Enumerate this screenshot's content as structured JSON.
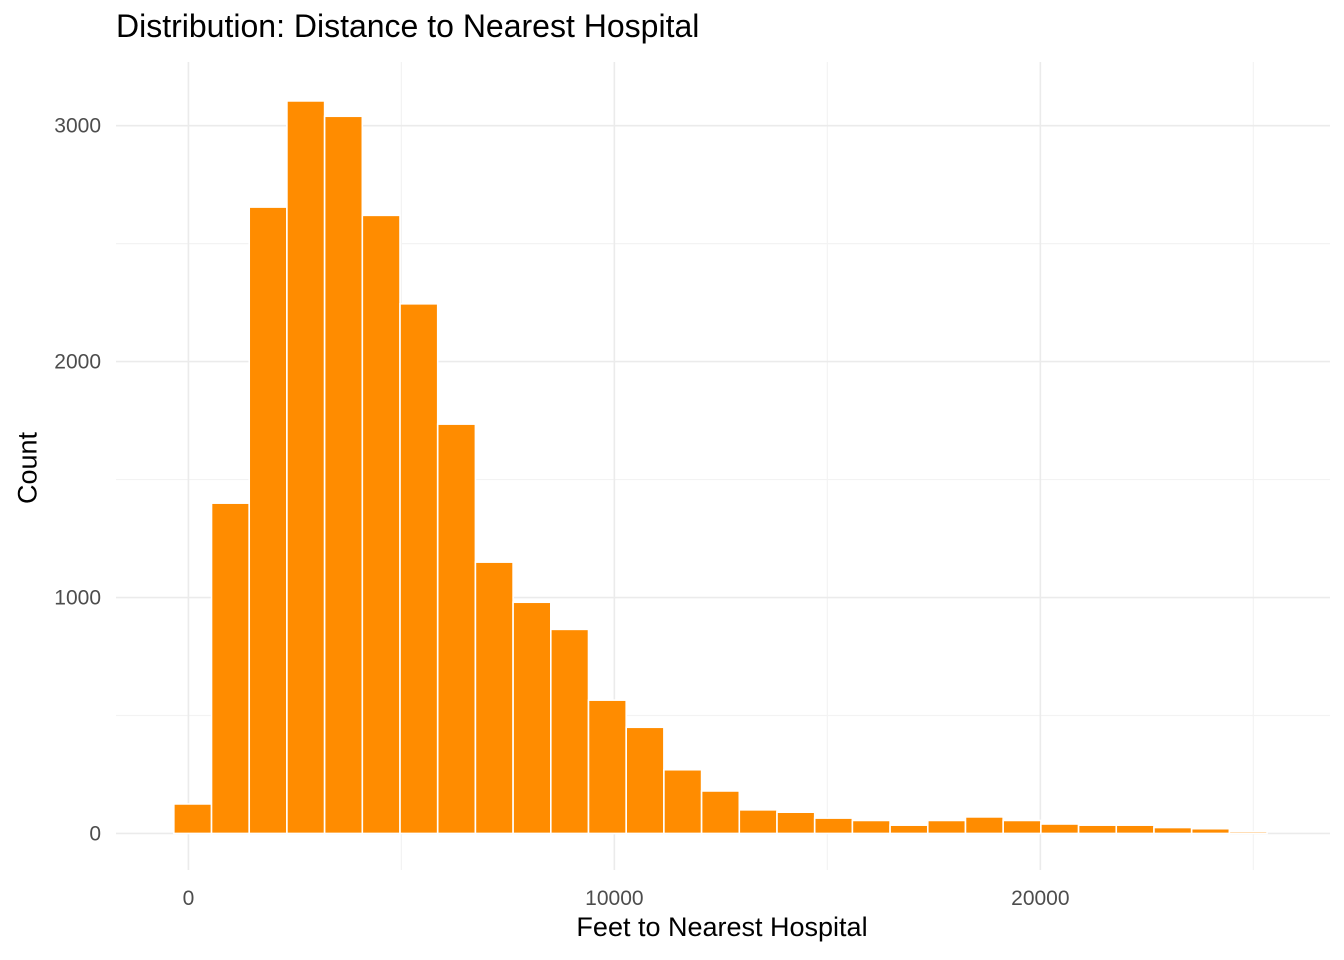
{
  "chart_data": {
    "type": "bar",
    "title": "Distribution: Distance to Nearest Hospital",
    "xlabel": "Feet to Nearest Hospital",
    "ylabel": "Count",
    "xlim": [
      -1700,
      26800
    ],
    "ylim": [
      -155,
      3270
    ],
    "x_ticks": [
      0,
      10000,
      20000
    ],
    "x_tick_labels": [
      "0",
      "10000",
      "20000"
    ],
    "y_ticks": [
      0,
      1000,
      2000,
      3000
    ],
    "y_tick_labels": [
      "0",
      "1000",
      "2000",
      "3000"
    ],
    "grid": true,
    "bin_width": 885,
    "bins": [
      {
        "x": 100,
        "count": 125
      },
      {
        "x": 985,
        "count": 1400
      },
      {
        "x": 1870,
        "count": 2655
      },
      {
        "x": 2755,
        "count": 3105
      },
      {
        "x": 3640,
        "count": 3040
      },
      {
        "x": 4525,
        "count": 2620
      },
      {
        "x": 5410,
        "count": 2245
      },
      {
        "x": 6295,
        "count": 1735
      },
      {
        "x": 7180,
        "count": 1150
      },
      {
        "x": 8065,
        "count": 980
      },
      {
        "x": 8950,
        "count": 865
      },
      {
        "x": 9835,
        "count": 565
      },
      {
        "x": 10720,
        "count": 450
      },
      {
        "x": 11605,
        "count": 270
      },
      {
        "x": 12490,
        "count": 180
      },
      {
        "x": 13375,
        "count": 100
      },
      {
        "x": 14260,
        "count": 90
      },
      {
        "x": 15145,
        "count": 65
      },
      {
        "x": 16030,
        "count": 55
      },
      {
        "x": 16915,
        "count": 35
      },
      {
        "x": 17800,
        "count": 55
      },
      {
        "x": 18685,
        "count": 70
      },
      {
        "x": 19570,
        "count": 55
      },
      {
        "x": 20455,
        "count": 40
      },
      {
        "x": 21340,
        "count": 35
      },
      {
        "x": 22225,
        "count": 35
      },
      {
        "x": 23110,
        "count": 25
      },
      {
        "x": 23995,
        "count": 20
      },
      {
        "x": 24880,
        "count": 8
      },
      {
        "x": 25765,
        "count": 0
      }
    ],
    "colors": {
      "bar_fill": "#FF8C00",
      "bar_outline": "#ffffff",
      "grid_major": "#ebebeb",
      "grid_minor": "#f3f3f3"
    }
  }
}
